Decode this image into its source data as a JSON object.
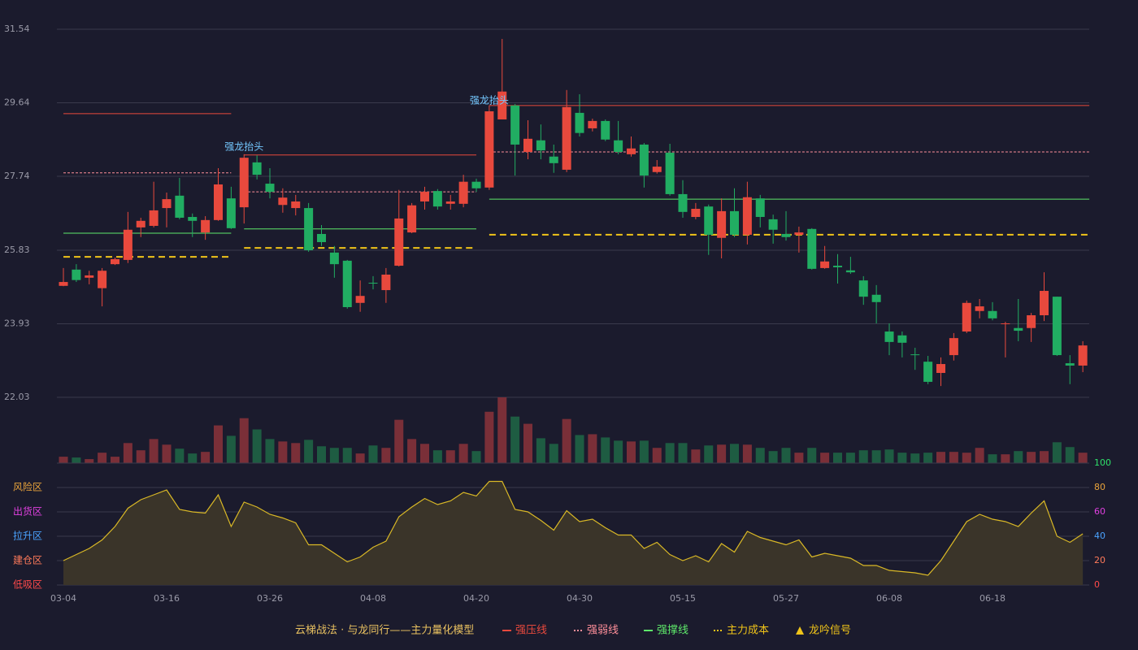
{
  "chart_data": [
    {
      "type": "candlestick",
      "ylim": [
        22.03,
        31.54
      ],
      "yticks": [
        22.03,
        23.93,
        25.83,
        27.74,
        29.64,
        31.54
      ],
      "grid": true,
      "up_color": "#e8493d",
      "down_color": "#21ad62",
      "open": [
        24.91,
        25.33,
        25.12,
        24.85,
        25.47,
        25.58,
        26.42,
        26.46,
        26.92,
        27.24,
        26.69,
        26.29,
        26.61,
        27.17,
        26.94,
        28.1,
        27.55,
        27.0,
        26.92,
        26.92,
        26.25,
        25.77,
        25.56,
        24.47,
        24.99,
        24.8,
        25.43,
        26.29,
        27.09,
        27.36,
        27.03,
        27.03,
        27.6,
        27.45,
        29.21,
        29.57,
        28.37,
        28.67,
        28.25,
        27.91,
        29.38,
        28.98,
        29.17,
        28.67,
        28.31,
        28.56,
        27.85,
        28.35,
        27.28,
        26.69,
        26.96,
        26.15,
        26.84,
        26.23,
        27.17,
        26.63,
        26.25,
        26.23,
        26.38,
        25.37,
        25.43,
        25.31,
        25.05,
        24.68,
        23.73,
        23.63,
        23.14,
        22.95,
        22.66,
        23.12,
        23.73,
        24.26,
        24.26,
        23.92,
        23.82,
        23.82,
        24.15,
        24.63,
        22.91,
        22.85
      ],
      "high": [
        25.37,
        25.47,
        25.3,
        25.37,
        25.64,
        26.82,
        26.67,
        27.6,
        27.32,
        27.7,
        26.78,
        26.71,
        27.95,
        27.47,
        28.31,
        28.28,
        27.95,
        27.43,
        27.26,
        27.05,
        26.48,
        25.94,
        25.58,
        25.05,
        25.16,
        25.37,
        27.39,
        27.05,
        27.47,
        27.41,
        27.26,
        27.78,
        27.68,
        29.57,
        31.29,
        29.61,
        29.19,
        29.08,
        28.56,
        29.97,
        29.86,
        29.23,
        29.21,
        29.17,
        28.77,
        28.6,
        28.16,
        28.58,
        27.64,
        27.05,
        27.01,
        27.17,
        27.43,
        27.6,
        27.26,
        26.75,
        26.84,
        26.44,
        26.4,
        25.94,
        25.73,
        25.66,
        25.16,
        24.93,
        23.94,
        23.73,
        23.31,
        23.1,
        23.06,
        23.69,
        24.53,
        24.57,
        24.49,
        23.98,
        24.57,
        24.21,
        25.26,
        24.63,
        23.12,
        23.48
      ],
      "low": [
        24.9,
        25.01,
        24.95,
        24.38,
        25.45,
        25.5,
        26.17,
        26.42,
        26.42,
        26.63,
        26.17,
        26.1,
        26.59,
        26.38,
        26.52,
        27.66,
        27.17,
        26.8,
        26.73,
        25.79,
        25.94,
        25.12,
        24.32,
        24.24,
        24.82,
        24.47,
        25.41,
        26.27,
        26.88,
        26.88,
        26.88,
        26.94,
        27.34,
        27.39,
        29.21,
        27.76,
        28.18,
        28.18,
        27.83,
        27.85,
        28.77,
        28.9,
        28.65,
        28.31,
        28.25,
        27.45,
        27.81,
        27.24,
        26.67,
        26.63,
        25.71,
        25.62,
        26.17,
        25.98,
        26.42,
        26.0,
        26.08,
        25.77,
        25.33,
        25.35,
        24.97,
        25.22,
        24.42,
        23.94,
        23.12,
        23.06,
        22.74,
        22.37,
        22.32,
        22.98,
        23.69,
        24.07,
        24.02,
        23.06,
        23.48,
        23.46,
        24.0,
        23.1,
        22.37,
        22.68
      ],
      "close": [
        25.01,
        25.06,
        25.18,
        25.3,
        25.6,
        26.36,
        26.59,
        26.86,
        27.15,
        26.67,
        26.59,
        26.61,
        27.53,
        26.4,
        28.22,
        27.78,
        27.34,
        27.19,
        27.09,
        25.83,
        26.04,
        25.47,
        24.36,
        24.65,
        24.97,
        25.2,
        26.65,
        26.99,
        27.34,
        26.96,
        27.09,
        27.6,
        27.43,
        29.42,
        29.93,
        28.56,
        28.71,
        28.41,
        28.08,
        29.53,
        28.86,
        29.17,
        28.69,
        28.37,
        28.46,
        27.76,
        27.99,
        27.28,
        26.82,
        26.9,
        26.23,
        26.84,
        26.23,
        27.2,
        26.69,
        26.36,
        26.17,
        26.29,
        25.35,
        25.54,
        25.39,
        25.26,
        24.63,
        24.49,
        23.46,
        23.44,
        23.12,
        22.43,
        22.89,
        23.56,
        24.47,
        24.38,
        24.07,
        23.94,
        23.75,
        24.15,
        24.78,
        23.12,
        22.85,
        23.37
      ],
      "levels": [
        {
          "name": "强压线",
          "color": "#e8493d",
          "dash": "none",
          "segments": [
            {
              "start": 0,
              "end": 13,
              "value": 29.36
            },
            {
              "start": 14,
              "end": 32,
              "value": 28.29
            },
            {
              "start": 33,
              "end": 79,
              "value": 29.57
            }
          ]
        },
        {
          "name": "强弱线",
          "color": "#ff8f9a",
          "dash": "3,2",
          "segments": [
            {
              "start": 0,
              "end": 13,
              "value": 27.83
            },
            {
              "start": 14,
              "end": 32,
              "value": 27.34
            },
            {
              "start": 33,
              "end": 79,
              "value": 28.37
            }
          ]
        },
        {
          "name": "强撑线",
          "color": "#5ee86a",
          "dash": "none",
          "segments": [
            {
              "start": 0,
              "end": 13,
              "value": 26.27
            },
            {
              "start": 14,
              "end": 32,
              "value": 26.38
            },
            {
              "start": 33,
              "end": 79,
              "value": 27.15
            }
          ]
        },
        {
          "name": "主力成本",
          "color": "#f0c419",
          "dash": "8,5",
          "segments": [
            {
              "start": 0,
              "end": 13,
              "value": 25.66
            },
            {
              "start": 14,
              "end": 32,
              "value": 25.89
            },
            {
              "start": 33,
              "end": 79,
              "value": 26.23
            }
          ]
        }
      ],
      "signals": {
        "name": "龙吟信号",
        "color": "#f0c419",
        "text_color": "#74c8ff",
        "points": [
          {
            "index": 14,
            "text": "强龙抬头"
          },
          {
            "index": 33,
            "text": "强龙抬头"
          }
        ]
      },
      "legend_title": "云梯战法 · 与龙同行——主力量化模型"
    },
    {
      "type": "bar",
      "up_color": "#7a2f38",
      "down_color": "#1e5c42",
      "values": [
        8,
        7,
        5,
        13,
        8,
        25,
        16,
        30,
        23,
        18,
        12,
        14,
        47,
        34,
        56,
        42,
        30,
        27,
        25,
        29,
        21,
        19,
        19,
        12,
        22,
        19,
        54,
        30,
        24,
        16,
        16,
        24,
        15,
        64,
        82,
        58,
        49,
        31,
        24,
        55,
        35,
        36,
        32,
        28,
        27,
        28,
        19,
        25,
        25,
        17,
        22,
        23,
        24,
        23,
        19,
        15,
        19,
        13,
        19,
        13,
        13,
        13,
        16,
        16,
        17,
        13,
        12,
        13,
        14,
        14,
        13,
        19,
        11,
        11,
        15,
        14,
        15,
        26,
        20,
        13
      ]
    },
    {
      "type": "line",
      "color": "#d9b826",
      "fill": "#3a3429",
      "ylim": [
        0,
        100
      ],
      "yticks": [
        0,
        20,
        40,
        60,
        80,
        100
      ],
      "tick_colors": [
        "#ff4a4a",
        "#ff7a5a",
        "#4aa3ff",
        "#e040e0",
        "#e8a33b",
        "#2fe06a"
      ],
      "zones": [
        {
          "value": 80,
          "label": "风险区",
          "color": "#e8a33b"
        },
        {
          "value": 60,
          "label": "出货区",
          "color": "#e040e0"
        },
        {
          "value": 40,
          "label": "拉升区",
          "color": "#4aa3ff"
        },
        {
          "value": 20,
          "label": "建仓区",
          "color": "#ff7a5a"
        },
        {
          "value": 0,
          "label": "低吸区",
          "color": "#ff4a4a"
        }
      ],
      "categories": [
        "03-04",
        null,
        null,
        null,
        null,
        null,
        null,
        null,
        "03-16",
        null,
        null,
        null,
        null,
        null,
        null,
        null,
        "03-26",
        null,
        null,
        null,
        null,
        null,
        null,
        null,
        "04-08",
        null,
        null,
        null,
        null,
        null,
        null,
        null,
        "04-20",
        null,
        null,
        null,
        null,
        null,
        null,
        null,
        "04-30",
        null,
        null,
        null,
        null,
        null,
        null,
        null,
        "05-15",
        null,
        null,
        null,
        null,
        null,
        null,
        null,
        "05-27",
        null,
        null,
        null,
        null,
        null,
        null,
        null,
        "06-08",
        null,
        null,
        null,
        null,
        null,
        null,
        null,
        "06-18",
        null,
        null,
        null,
        null,
        null,
        null,
        null
      ],
      "values": [
        20,
        25,
        30,
        37,
        48,
        63,
        70,
        74,
        78,
        62,
        60,
        59,
        74,
        48,
        68,
        64,
        58,
        55,
        51,
        33,
        33,
        26,
        19,
        23,
        31,
        36,
        56,
        64,
        71,
        66,
        69,
        76,
        73,
        85,
        85,
        62,
        60,
        53,
        45,
        61,
        52,
        54,
        47,
        41,
        41,
        30,
        35,
        25,
        20,
        24,
        19,
        34,
        27,
        44,
        39,
        36,
        33,
        37,
        23,
        26,
        24,
        22,
        16,
        16,
        12,
        11,
        10,
        8,
        20,
        36,
        52,
        58,
        54,
        52,
        48,
        59,
        69,
        40,
        35,
        42
      ]
    }
  ]
}
